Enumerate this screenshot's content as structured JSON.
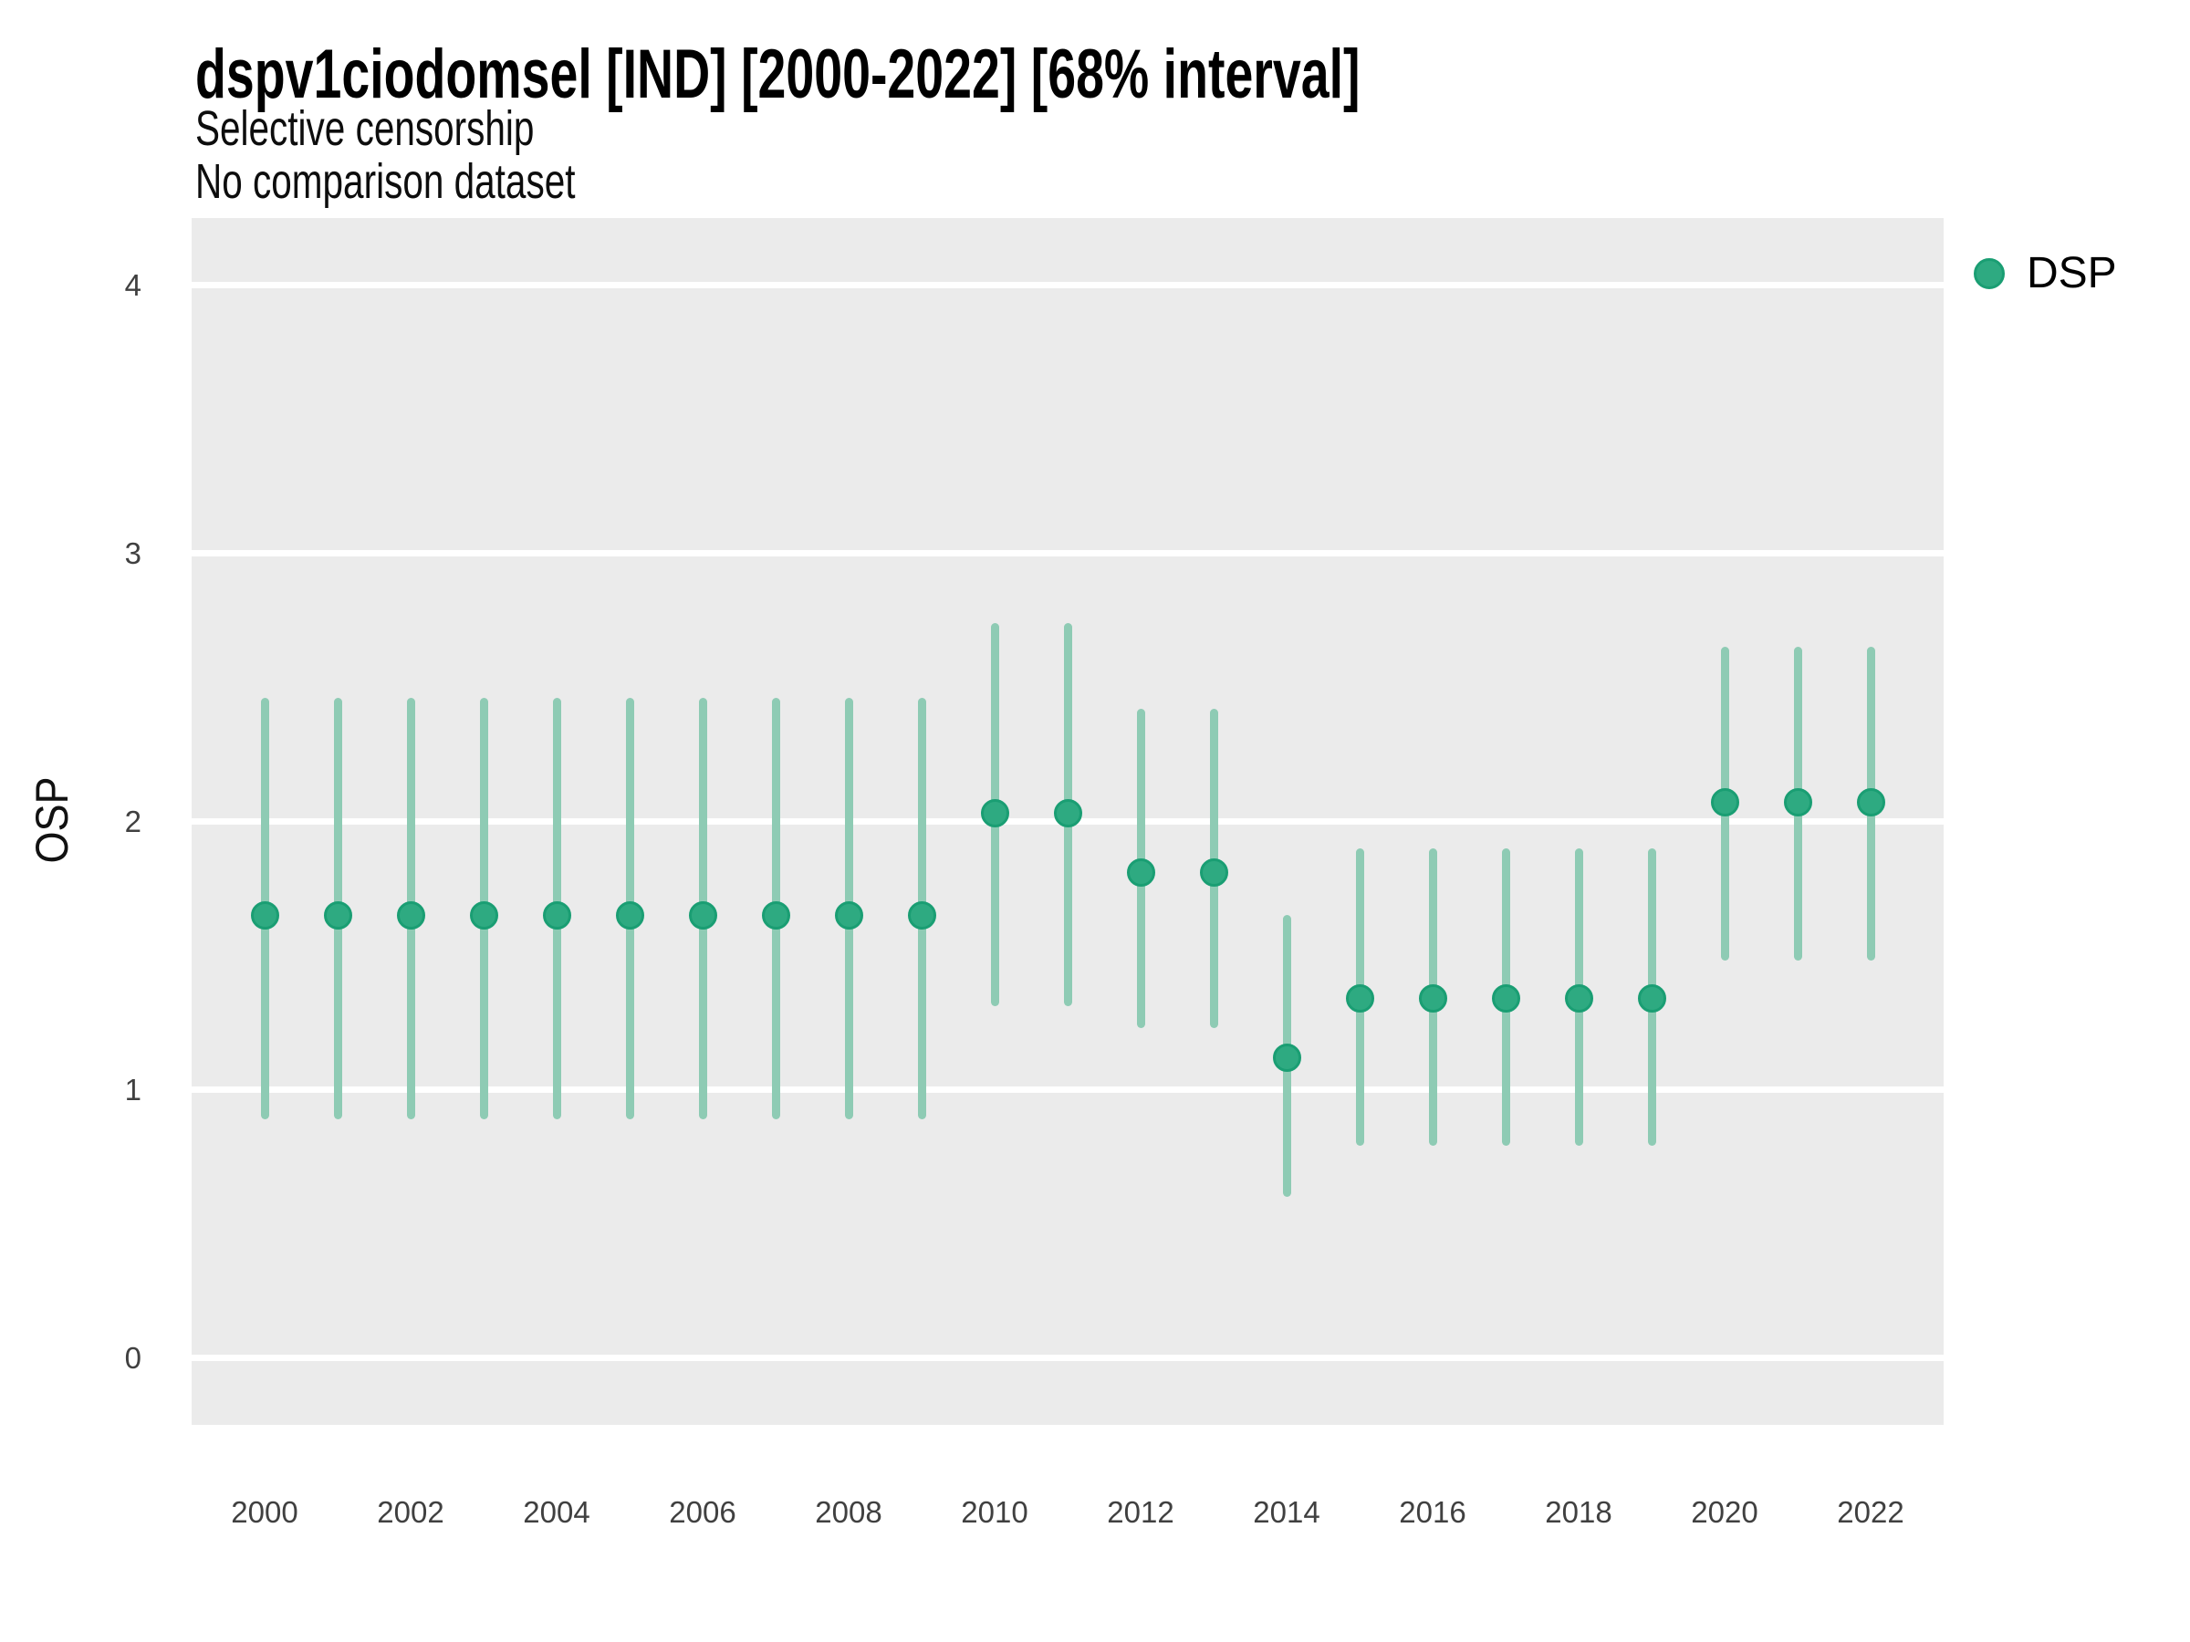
{
  "title": "dspv1ciodomsel [IND] [2000-2022] [68% interval]",
  "subtitle_line1": "Selective censorship",
  "subtitle_line2": "No comparison dataset",
  "y_axis_label": "OSP",
  "legend": {
    "label": "DSP",
    "position": "right"
  },
  "colors": {
    "panel_background": "#ebebeb",
    "gridline": "#ffffff",
    "point_fill": "#2eaa81",
    "point_stroke": "#1a9e73",
    "interval_bar": "#8ecbb4",
    "title_text": "#000000",
    "tick_text": "#404040"
  },
  "chart_data": {
    "type": "pointrange",
    "title": "dspv1ciodomsel [IND] [2000-2022] [68% interval]",
    "subtitle": [
      "Selective censorship",
      "No comparison dataset"
    ],
    "xlabel": "",
    "ylabel": "OSP",
    "interval_level": "68%",
    "grid": "horizontal-major-only",
    "legend_position": "right",
    "ylim": [
      -0.25,
      4.25
    ],
    "y_ticks": [
      0,
      1,
      2,
      3,
      4
    ],
    "x_ticks": [
      2000,
      2002,
      2004,
      2006,
      2008,
      2010,
      2012,
      2014,
      2016,
      2018,
      2020,
      2022
    ],
    "series": [
      {
        "name": "DSP",
        "years": [
          2000,
          2001,
          2002,
          2003,
          2004,
          2005,
          2006,
          2007,
          2008,
          2009,
          2010,
          2011,
          2012,
          2013,
          2014,
          2015,
          2016,
          2017,
          2018,
          2019,
          2020,
          2021,
          2022
        ],
        "mid": [
          1.65,
          1.65,
          1.65,
          1.65,
          1.65,
          1.65,
          1.65,
          1.65,
          1.65,
          1.65,
          2.03,
          2.03,
          1.81,
          1.81,
          1.12,
          1.34,
          1.34,
          1.34,
          1.34,
          1.34,
          2.07,
          2.07,
          2.07
        ],
        "low": [
          0.89,
          0.89,
          0.89,
          0.89,
          0.89,
          0.89,
          0.89,
          0.89,
          0.89,
          0.89,
          1.31,
          1.31,
          1.23,
          1.23,
          0.6,
          0.79,
          0.79,
          0.79,
          0.79,
          0.79,
          1.48,
          1.48,
          1.48
        ],
        "high": [
          2.46,
          2.46,
          2.46,
          2.46,
          2.46,
          2.46,
          2.46,
          2.46,
          2.46,
          2.46,
          2.74,
          2.74,
          2.42,
          2.42,
          1.65,
          1.9,
          1.9,
          1.9,
          1.9,
          1.9,
          2.65,
          2.65,
          2.65
        ]
      }
    ]
  }
}
